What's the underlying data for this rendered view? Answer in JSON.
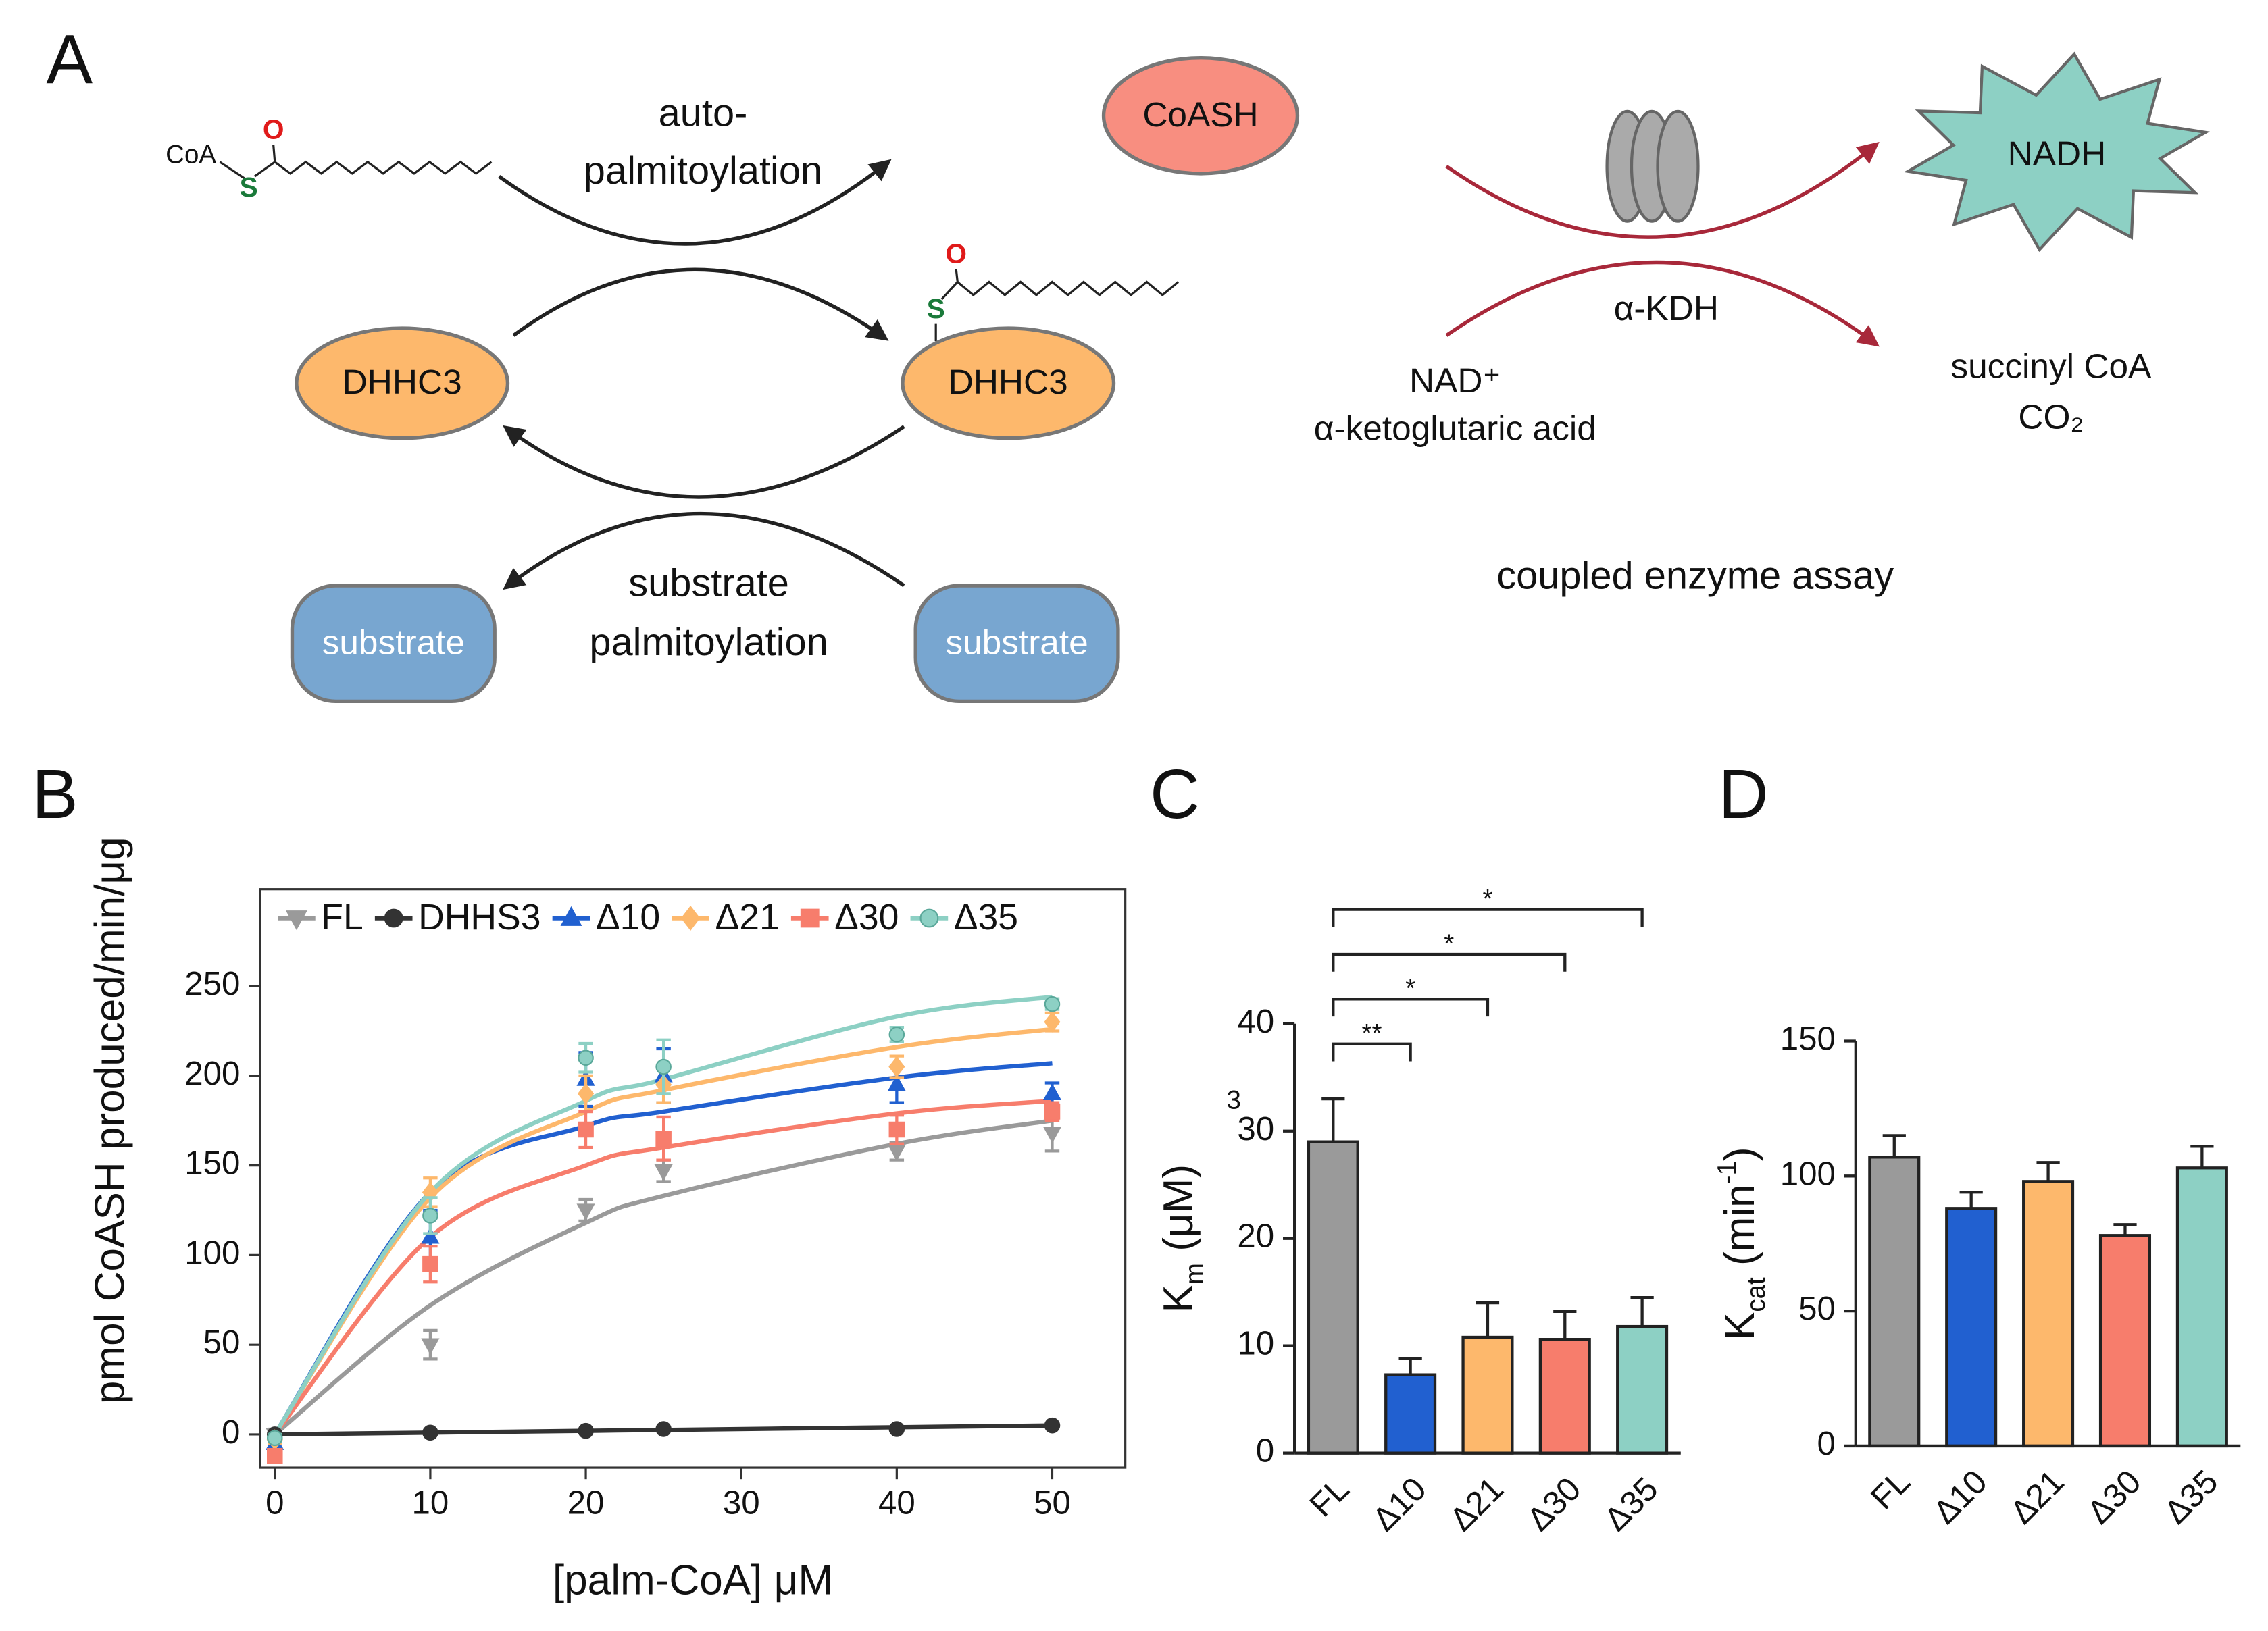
{
  "panel_labels": [
    "A",
    "B",
    "C",
    "D"
  ],
  "diagram": {
    "coa": "CoA",
    "s1": "S",
    "o1": "O",
    "auto1": "auto-",
    "auto2": "palmitoylation",
    "coash": "CoASH",
    "dhhc_left": "DHHC3",
    "dhhc_right": "DHHC3",
    "s2": "S",
    "o2": "O",
    "sub1": "substrate",
    "sub2": "palmitoylation",
    "substrate_left": "substrate",
    "substrate_right": "substrate",
    "kdh": "α-KDH",
    "nadh": "NADH",
    "nad": "NAD⁺",
    "akg": "α-ketoglutaric acid",
    "succ": "succinyl CoA",
    "co2": "CO₂",
    "assay": "coupled enzyme assay"
  },
  "chart_data": [
    {
      "type": "scatter",
      "xlabel": "[palm-CoA] μM",
      "ylabel": "pmol CoASH produced/min/μg",
      "x": [
        0,
        10,
        20,
        25,
        40,
        50
      ],
      "xlim": [
        -0.93,
        54.7
      ],
      "xticks": [
        0,
        10,
        20,
        30,
        40,
        50
      ],
      "ylim": [
        -18.5,
        304
      ],
      "yticks": [
        0,
        50,
        100,
        150,
        200,
        250
      ],
      "legend": "top",
      "series": [
        {
          "name": "FL",
          "color": "#9a9a9a",
          "marker": "triangle-down",
          "values": [
            0,
            50,
            125,
            147,
            158,
            168
          ],
          "errors": [
            3,
            8,
            6,
            6,
            5,
            10
          ],
          "fit": [
            0,
            72,
            118,
            133,
            162,
            175
          ]
        },
        {
          "name": "DHHS3",
          "color": "#333333",
          "marker": "circle",
          "values": [
            0,
            1,
            2,
            3,
            3,
            5
          ],
          "errors": [
            0,
            0,
            0,
            0,
            0,
            0
          ],
          "fit": [
            0,
            1,
            2,
            2.5,
            4,
            5
          ]
        },
        {
          "name": "Δ10",
          "color": "#2160d0",
          "marker": "triangle-up",
          "values": [
            -5,
            110,
            198,
            200,
            195,
            190
          ],
          "errors": [
            3,
            15,
            15,
            15,
            10,
            6
          ],
          "fit": [
            0,
            135,
            172,
            180,
            199,
            207
          ]
        },
        {
          "name": "Δ21",
          "color": "#fdb86c",
          "marker": "diamond",
          "values": [
            -3,
            135,
            190,
            195,
            205,
            230
          ],
          "errors": [
            2,
            8,
            10,
            10,
            6,
            5
          ],
          "fit": [
            0,
            132,
            180,
            192,
            216,
            226
          ]
        },
        {
          "name": "Δ30",
          "color": "#f77d6c",
          "marker": "square",
          "values": [
            -12,
            95,
            170,
            165,
            170,
            180
          ],
          "errors": [
            3,
            10,
            10,
            12,
            8,
            5
          ],
          "fit": [
            0,
            110,
            150,
            160,
            179,
            186
          ]
        },
        {
          "name": "Δ35",
          "color": "#8dd0c4",
          "marker": "circle",
          "values": [
            -2,
            122,
            210,
            205,
            223,
            240
          ],
          "errors": [
            2,
            10,
            8,
            15,
            4,
            3
          ],
          "fit": [
            0,
            135,
            186,
            198,
            233,
            244
          ]
        }
      ]
    },
    {
      "type": "bar",
      "ylabel": [
        "K",
        "m",
        " (μM)"
      ],
      "ylabel_style": [
        "normal",
        "sub",
        "normal"
      ],
      "note": "3",
      "categories": [
        "FL",
        "Δ10",
        "Δ21",
        "Δ30",
        "Δ35"
      ],
      "values": [
        29,
        7.3,
        10.8,
        10.6,
        11.8
      ],
      "errors": [
        4,
        1.5,
        3.2,
        2.6,
        2.7
      ],
      "colors": [
        "#9a9a9a",
        "#2160d0",
        "#fdb86c",
        "#f77d6c",
        "#8dd0c4"
      ],
      "ylim": [
        0,
        40
      ],
      "yticks": [
        0,
        10,
        20,
        30,
        40
      ],
      "brackets": [
        {
          "from": 0,
          "to": 1,
          "label": "**"
        },
        {
          "from": 0,
          "to": 2,
          "label": "*"
        },
        {
          "from": 0,
          "to": 3,
          "label": "*"
        },
        {
          "from": 0,
          "to": 4,
          "label": "*"
        }
      ]
    },
    {
      "type": "bar",
      "ylabel": [
        "K",
        "cat",
        " (min",
        "-1",
        ")"
      ],
      "ylabel_style": [
        "normal",
        "sub",
        "normal",
        "sup",
        "normal"
      ],
      "categories": [
        "FL",
        "Δ10",
        "Δ21",
        "Δ30",
        "Δ35"
      ],
      "values": [
        107,
        88,
        98,
        78,
        103
      ],
      "errors": [
        8,
        6,
        7,
        4,
        8
      ],
      "colors": [
        "#9a9a9a",
        "#2160d0",
        "#fdb86c",
        "#f77d6c",
        "#8dd0c4"
      ],
      "ylim": [
        0,
        150
      ],
      "yticks": [
        0,
        50,
        100,
        150
      ]
    }
  ]
}
